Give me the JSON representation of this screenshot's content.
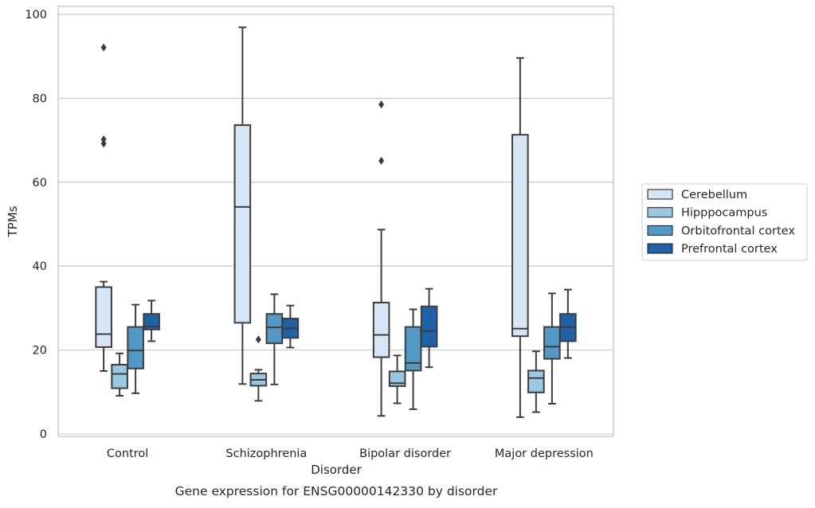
{
  "chart_data": {
    "type": "boxplot",
    "xlabel": "Disorder",
    "ylabel": "TPMs",
    "caption": "Gene expression for ENSG00000142330 by disorder",
    "categories": [
      "Control",
      "Schizophrenia",
      "Bipolar disorder",
      "Major depression"
    ],
    "ylim": [
      0,
      100
    ],
    "yticks": [
      0,
      20,
      40,
      60,
      80,
      100
    ],
    "grid": "horizontal",
    "legend_position": "right",
    "series": [
      {
        "name": "Cerebellum",
        "color": "#d6e6f4",
        "boxes": [
          {
            "q1": 20.7,
            "median": 23.8,
            "q3": 35.0,
            "whislo": 15.0,
            "whishi": 36.3,
            "fliers": [
              92.1,
              70.2,
              69.2
            ]
          },
          {
            "q1": 26.5,
            "median": 54.1,
            "q3": 73.6,
            "whislo": 11.9,
            "whishi": 96.9,
            "fliers": []
          },
          {
            "q1": 18.3,
            "median": 23.6,
            "q3": 31.3,
            "whislo": 4.3,
            "whishi": 48.7,
            "fliers": [
              78.5,
              65.1
            ]
          },
          {
            "q1": 23.3,
            "median": 25.1,
            "q3": 71.3,
            "whislo": 4.0,
            "whishi": 89.6,
            "fliers": []
          }
        ]
      },
      {
        "name": "Hipppocampus",
        "color": "#9ac8e0",
        "boxes": [
          {
            "q1": 10.9,
            "median": 14.3,
            "q3": 16.5,
            "whislo": 9.1,
            "whishi": 19.2,
            "fliers": []
          },
          {
            "q1": 11.5,
            "median": 12.9,
            "q3": 14.4,
            "whislo": 7.9,
            "whishi": 15.3,
            "fliers": [
              22.5
            ]
          },
          {
            "q1": 11.4,
            "median": 12.1,
            "q3": 14.9,
            "whislo": 7.3,
            "whishi": 18.7,
            "fliers": []
          },
          {
            "q1": 9.9,
            "median": 13.3,
            "q3": 15.1,
            "whislo": 5.2,
            "whishi": 19.7,
            "fliers": []
          }
        ]
      },
      {
        "name": "Orbitofrontal cortex",
        "color": "#5399c7",
        "boxes": [
          {
            "q1": 15.6,
            "median": 19.9,
            "q3": 25.5,
            "whislo": 9.7,
            "whishi": 30.8,
            "fliers": []
          },
          {
            "q1": 21.6,
            "median": 25.4,
            "q3": 28.6,
            "whislo": 11.8,
            "whishi": 33.3,
            "fliers": []
          },
          {
            "q1": 15.1,
            "median": 16.9,
            "q3": 25.5,
            "whislo": 5.9,
            "whishi": 29.7,
            "fliers": []
          },
          {
            "q1": 17.9,
            "median": 20.8,
            "q3": 25.5,
            "whislo": 7.2,
            "whishi": 33.5,
            "fliers": []
          }
        ]
      },
      {
        "name": "Prefrontal cortex",
        "color": "#1f62a8",
        "boxes": [
          {
            "q1": 24.9,
            "median": 25.6,
            "q3": 28.6,
            "whislo": 22.1,
            "whishi": 31.8,
            "fliers": []
          },
          {
            "q1": 22.9,
            "median": 25.2,
            "q3": 27.5,
            "whislo": 20.6,
            "whishi": 30.6,
            "fliers": []
          },
          {
            "q1": 20.8,
            "median": 24.5,
            "q3": 30.4,
            "whislo": 15.9,
            "whishi": 34.6,
            "fliers": []
          },
          {
            "q1": 22.1,
            "median": 25.4,
            "q3": 28.6,
            "whislo": 18.1,
            "whishi": 34.4,
            "fliers": []
          }
        ]
      }
    ]
  }
}
